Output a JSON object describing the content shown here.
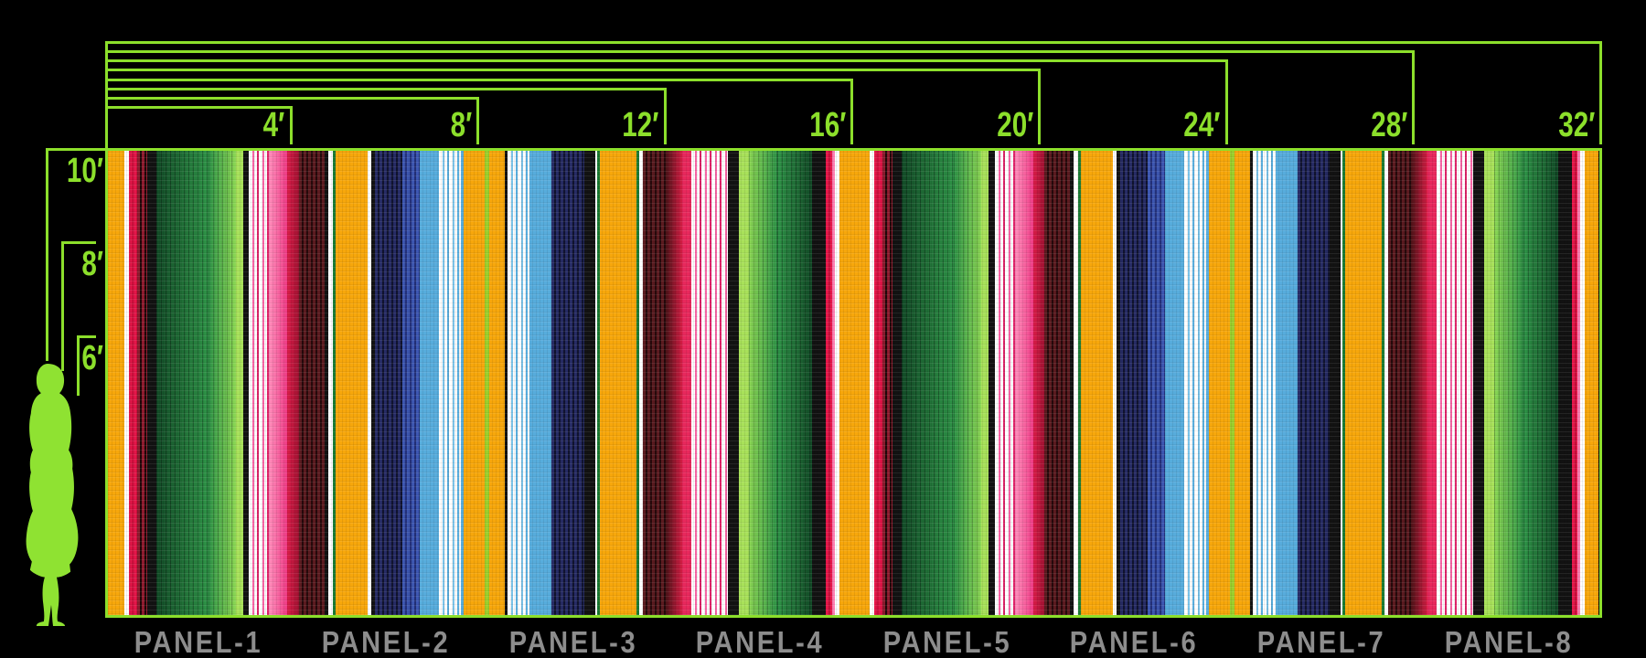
{
  "scene": {
    "accent_green": "#8CDF2B",
    "panel_label_gray": "#8D8D8D",
    "background": "#000000"
  },
  "top_dimensions": {
    "marks": [
      {
        "label": "4′",
        "feet": 4
      },
      {
        "label": "8′",
        "feet": 8
      },
      {
        "label": "12′",
        "feet": 12
      },
      {
        "label": "16′",
        "feet": 16
      },
      {
        "label": "20′",
        "feet": 20
      },
      {
        "label": "24′",
        "feet": 24
      },
      {
        "label": "28′",
        "feet": 28
      },
      {
        "label": "32′",
        "feet": 32
      }
    ]
  },
  "left_dimensions": {
    "marks": [
      {
        "label": "10′",
        "feet": 10
      },
      {
        "label": "8′",
        "feet": 8
      },
      {
        "label": "6′",
        "feet": 6
      }
    ]
  },
  "panels": {
    "labels": [
      "PANEL-1",
      "PANEL-2",
      "PANEL-3",
      "PANEL-4",
      "PANEL-5",
      "PANEL-6",
      "PANEL-7",
      "PANEL-8"
    ]
  },
  "figure": {
    "name": "woman-silhouette",
    "color": "#8FE232"
  },
  "mural": {
    "width_feet": 32,
    "height_feet": 10,
    "panel_count": 8,
    "panel_width_feet": 4,
    "palette": {
      "orange": "#F7A70B",
      "white": "#FFFFFF",
      "crimson": "repeating-linear-gradient(90deg,#E51649 0 3px,#C90F3B 3px 5px)",
      "crimson2": "#E8285C",
      "dkred": "repeating-linear-gradient(90deg,#8E1B2E 0 3px,#200608 3px 5px)",
      "black": "#121212",
      "grn_dk_mid": "repeating-linear-gradient(90deg,rgba(0,0,0,0.28) 0 1px,rgba(0,0,0,0) 1px 5px),linear-gradient(90deg,#124B27,#2E9447)",
      "grn_mid_light": "repeating-linear-gradient(90deg,rgba(0,0,0,0.22) 0 1px,rgba(0,0,0,0) 1px 5px),linear-gradient(90deg,#2E9447,#8CD854)",
      "grn_light_mid": "repeating-linear-gradient(90deg,rgba(0,0,0,0.22) 0 1px,rgba(0,0,0,0) 1px 5px),linear-gradient(90deg,#8CD854,#2E9447)",
      "grn_mid_dk": "repeating-linear-gradient(90deg,rgba(0,0,0,0.28) 0 1px,rgba(0,0,0,0) 1px 5px),linear-gradient(90deg,#2E9447,#124B27)",
      "lime": "#A8E15A",
      "lime2": "#9CCF2B",
      "whitepink": "repeating-linear-gradient(90deg,#FFFFFF 0 4px,#F763A4 4px 6px,#FFFFFF 6px 9px,#DE2167 9px 11px)",
      "pinkgrad": "linear-gradient(90deg,#FF8FBC,#EF3A85)",
      "pinkthin": "#FF7FB2",
      "redgrad": "linear-gradient(90deg,#DC1C49,#9E1130)",
      "redup": "linear-gradient(90deg,#4A1216,#D51C43)",
      "maroon": "repeating-linear-gradient(90deg,#5C1B20 0 3px,#26090B 3px 5px)",
      "navy": "repeating-linear-gradient(90deg,#272C66 0 3px,#10132F 3px 5px)",
      "royal": "repeating-linear-gradient(90deg,#3D57B2 0 3px,#23307A 3px 5px)",
      "sky": "#57ACDC",
      "whitesky": "repeating-linear-gradient(90deg,#FFFFFF 0 4px,#79C2E8 4px 6px,#FFFFFF 6px 9px,#57ACDC 9px 11px)",
      "dkgreen": "#1A7A33"
    },
    "stripe_unit": [
      [
        18,
        "orange"
      ],
      [
        5,
        "white"
      ],
      [
        9,
        "crimson"
      ],
      [
        11,
        "dkred"
      ],
      [
        10,
        "black"
      ],
      [
        57,
        "grn_dk_mid"
      ],
      [
        30,
        "grn_mid_light"
      ],
      [
        8,
        "lime"
      ],
      [
        7,
        "black"
      ],
      [
        22,
        "whitepink"
      ],
      [
        20,
        "pinkgrad"
      ],
      [
        13,
        "redgrad"
      ],
      [
        28,
        "maroon"
      ],
      [
        4,
        "black"
      ],
      [
        5,
        "white"
      ],
      [
        3,
        "dkgreen"
      ],
      [
        35,
        "orange"
      ],
      [
        4,
        "white"
      ],
      [
        4,
        "black"
      ],
      [
        30,
        "navy"
      ],
      [
        19,
        "royal"
      ],
      [
        21,
        "sky"
      ],
      [
        24,
        "whitesky"
      ],
      [
        3,
        "sky"
      ],
      [
        23,
        "orange"
      ],
      [
        5,
        "lime2"
      ],
      [
        17,
        "orange"
      ],
      [
        3,
        "black"
      ],
      [
        25,
        "whitesky"
      ],
      [
        24,
        "sky"
      ],
      [
        36,
        "navy"
      ],
      [
        12,
        "black"
      ],
      [
        2,
        "white"
      ],
      [
        3,
        "dkgreen"
      ],
      [
        40,
        "orange"
      ],
      [
        3,
        "dkgreen"
      ],
      [
        4,
        "white"
      ],
      [
        25,
        "maroon"
      ],
      [
        18,
        "redup"
      ],
      [
        10,
        "crimson2"
      ],
      [
        40,
        "whitepink"
      ],
      [
        12,
        "black"
      ],
      [
        11,
        "lime"
      ],
      [
        32,
        "grn_light_mid"
      ],
      [
        38,
        "grn_mid_dk"
      ],
      [
        15,
        "black"
      ],
      [
        7,
        "crimson"
      ],
      [
        3,
        "pinkthin"
      ],
      [
        5,
        "white"
      ],
      [
        15,
        "orange"
      ]
    ]
  }
}
